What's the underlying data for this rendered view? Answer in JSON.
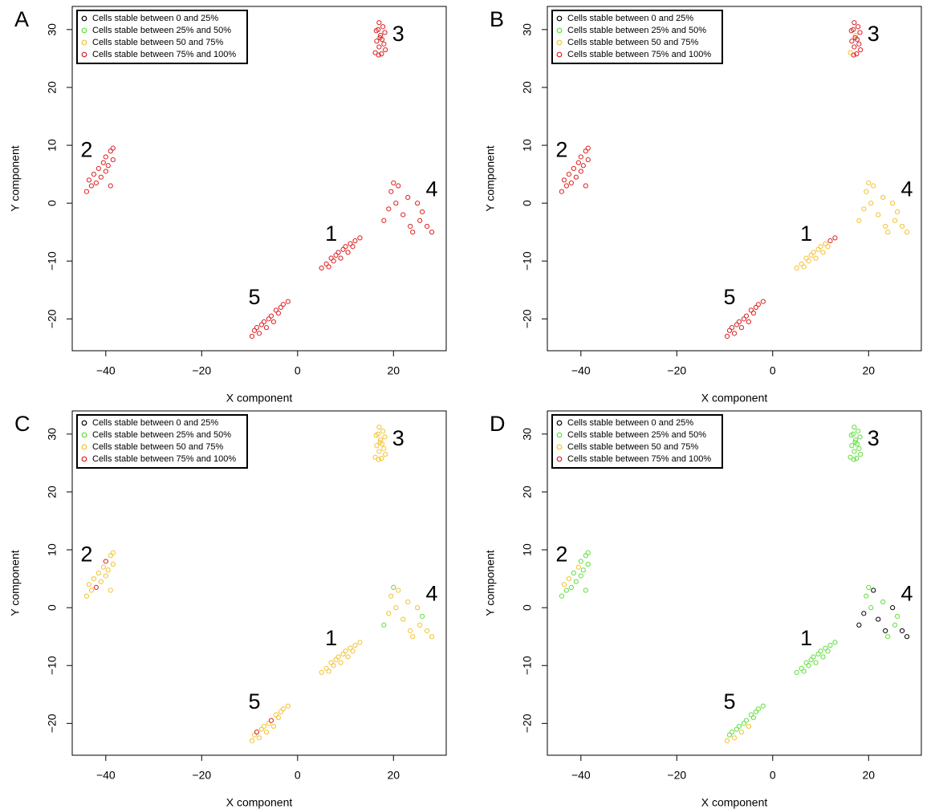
{
  "chart_data": [
    {
      "type": "scatter",
      "panel_label": "A",
      "x_label": "X component",
      "y_label": "Y component",
      "xlim": [
        -47,
        31
      ],
      "ylim": [
        -25.5,
        34
      ],
      "xticks": [
        {
          "value": -40,
          "label": "−40"
        },
        {
          "value": -20,
          "label": "−20"
        },
        0,
        20
      ],
      "yticks": [
        {
          "value": -20,
          "label": "−20"
        },
        {
          "value": -10,
          "label": "−10"
        },
        0,
        10,
        20,
        30
      ],
      "annotations": [
        "1",
        "2",
        "3",
        "4",
        "5"
      ],
      "series": [
        {
          "name": "Cells stable between 0 and 25%",
          "color": "#000000",
          "x": [],
          "y": []
        },
        {
          "name": "Cells stable between 25% and 50%",
          "color": "#5fe03a",
          "x": [],
          "y": []
        },
        {
          "name": "Cells stable between 50 and 75%",
          "color": "#f2c230",
          "x": [],
          "y": []
        },
        {
          "name": "Cells stable between 75% and 100%",
          "color": "#dd2020",
          "x": [
            5,
            6,
            6.5,
            7,
            7.5,
            8,
            8.5,
            9,
            9.5,
            10,
            10.5,
            11,
            11.5,
            12,
            13,
            -44,
            -43.5,
            -43,
            -42.5,
            -42,
            -41.5,
            -41,
            -40.5,
            -40,
            -40,
            -39.5,
            -39,
            -38.5,
            -38.5,
            -39,
            16.2,
            16.5,
            16.8,
            17,
            17,
            17.3,
            17.5,
            17.6,
            17.8,
            18,
            18.2,
            16.4,
            18.3,
            17.2,
            16.9,
            18,
            19,
            19.5,
            20,
            21,
            20.5,
            22,
            23,
            23.5,
            24,
            25,
            25.5,
            26,
            27,
            28,
            -9.5,
            -9,
            -8.5,
            -8,
            -7.5,
            -7,
            -6.5,
            -6,
            -5.5,
            -5,
            -4.5,
            -4,
            -3.5,
            -3,
            -2
          ],
          "y": [
            -11.2,
            -10.5,
            -11,
            -9.5,
            -10,
            -9,
            -8.5,
            -9.5,
            -8,
            -7.5,
            -8.5,
            -7,
            -7.5,
            -6.5,
            -6,
            2,
            4,
            3,
            5,
            3.5,
            6,
            4.5,
            7,
            5.5,
            8,
            6.5,
            9,
            7.5,
            9.5,
            3,
            26,
            28,
            30,
            27,
            31.2,
            29,
            25.8,
            28.3,
            30.5,
            27.5,
            29.5,
            29.8,
            26.5,
            28.6,
            25.6,
            -3,
            -1,
            2,
            3.5,
            3,
            0,
            -2,
            1,
            -4,
            -5,
            0,
            -3,
            -1.5,
            -4,
            -5,
            -23,
            -22,
            -21.5,
            -22.5,
            -21,
            -20.5,
            -21.5,
            -20,
            -19.5,
            -20.5,
            -18.5,
            -19,
            -18,
            -17.5,
            -17
          ]
        }
      ]
    },
    {
      "type": "scatter",
      "panel_label": "B",
      "x_label": "X component",
      "y_label": "Y component",
      "xlim": [
        -47,
        31
      ],
      "ylim": [
        -25.5,
        34
      ],
      "xticks": [
        {
          "value": -40,
          "label": "−40"
        },
        {
          "value": -20,
          "label": "−20"
        },
        0,
        20
      ],
      "yticks": [
        {
          "value": -20,
          "label": "−20"
        },
        {
          "value": -10,
          "label": "−10"
        },
        0,
        10,
        20,
        30
      ],
      "annotations": [
        "1",
        "2",
        "3",
        "4",
        "5"
      ],
      "series": [
        {
          "name": "Cells stable between 0 and 25%",
          "color": "#000000",
          "x": [],
          "y": []
        },
        {
          "name": "Cells stable between 25% and 50%",
          "color": "#5fe03a",
          "x": [],
          "y": []
        },
        {
          "name": "Cells stable between 50 and 75%",
          "color": "#f2c230",
          "x": [
            5,
            6,
            6.5,
            7,
            7.5,
            8,
            8.5,
            9,
            9.5,
            10,
            10.5,
            11,
            11.5,
            18,
            19,
            19.5,
            20,
            21,
            20.5,
            22,
            23,
            23.5,
            24,
            25,
            25.5,
            26,
            27,
            28,
            16.2,
            17.3
          ],
          "y": [
            -11.2,
            -10.5,
            -11,
            -9.5,
            -10,
            -9,
            -8.5,
            -9.5,
            -8,
            -7.5,
            -8.5,
            -7,
            -7.5,
            -3,
            -1,
            2,
            3.5,
            3,
            0,
            -2,
            1,
            -4,
            -5,
            0,
            -3,
            -1.5,
            -4,
            -5,
            26,
            29
          ]
        },
        {
          "name": "Cells stable between 75% and 100%",
          "color": "#dd2020",
          "x": [
            12,
            13,
            -44,
            -43.5,
            -43,
            -42.5,
            -42,
            -41.5,
            -41,
            -40.5,
            -40,
            -40,
            -39.5,
            -39,
            -38.5,
            -38.5,
            -39,
            16.5,
            16.8,
            17,
            17,
            17.5,
            17.6,
            17.8,
            18,
            18.2,
            16.4,
            18.3,
            17.2,
            16.9,
            -9.5,
            -9,
            -8.5,
            -8,
            -7.5,
            -7,
            -6.5,
            -6,
            -5.5,
            -5,
            -4.5,
            -4,
            -3.5,
            -3,
            -2
          ],
          "y": [
            -6.5,
            -6,
            2,
            4,
            3,
            5,
            3.5,
            6,
            4.5,
            7,
            5.5,
            8,
            6.5,
            9,
            7.5,
            9.5,
            3,
            28,
            30,
            27,
            31.2,
            25.8,
            28.3,
            30.5,
            27.5,
            29.5,
            29.8,
            26.5,
            28.6,
            25.6,
            -23,
            -22,
            -21.5,
            -22.5,
            -21,
            -20.5,
            -21.5,
            -20,
            -19.5,
            -20.5,
            -18.5,
            -19,
            -18,
            -17.5,
            -17
          ]
        }
      ]
    },
    {
      "type": "scatter",
      "panel_label": "C",
      "x_label": "X component",
      "y_label": "Y component",
      "xlim": [
        -47,
        31
      ],
      "ylim": [
        -25.5,
        34
      ],
      "xticks": [
        {
          "value": -40,
          "label": "−40"
        },
        {
          "value": -20,
          "label": "−20"
        },
        0,
        20
      ],
      "yticks": [
        {
          "value": -20,
          "label": "−20"
        },
        {
          "value": -10,
          "label": "−10"
        },
        0,
        10,
        20,
        30
      ],
      "annotations": [
        "1",
        "2",
        "3",
        "4",
        "5"
      ],
      "series": [
        {
          "name": "Cells stable between 0 and 25%",
          "color": "#000000",
          "x": [],
          "y": []
        },
        {
          "name": "Cells stable between 25% and 50%",
          "color": "#5fe03a",
          "x": [
            18,
            20,
            26
          ],
          "y": [
            -3,
            3.5,
            -1.5
          ]
        },
        {
          "name": "Cells stable between 50 and 75%",
          "color": "#f2c230",
          "x": [
            5,
            6,
            6.5,
            7,
            7.5,
            8,
            8.5,
            9,
            9.5,
            10,
            10.5,
            11,
            11.5,
            12,
            13,
            -44,
            -43.5,
            -43,
            -42.5,
            -41.5,
            -41,
            -40.5,
            -40,
            -39.5,
            -39,
            -38.5,
            -38.5,
            -39,
            16.2,
            16.5,
            16.8,
            17,
            17,
            17.3,
            17.5,
            17.6,
            17.8,
            18,
            18.2,
            16.4,
            18.3,
            17.2,
            16.9,
            19,
            19.5,
            21,
            20.5,
            22,
            23,
            23.5,
            24,
            25,
            25.5,
            27,
            28,
            -9.5,
            -9,
            -8,
            -7.5,
            -7,
            -6.5,
            -6,
            -5,
            -4.5,
            -4,
            -3.5,
            -3,
            -2
          ],
          "y": [
            -11.2,
            -10.5,
            -11,
            -9.5,
            -10,
            -9,
            -8.5,
            -9.5,
            -8,
            -7.5,
            -8.5,
            -7,
            -7.5,
            -6.5,
            -6,
            2,
            4,
            3,
            5,
            6,
            4.5,
            7,
            5.5,
            6.5,
            9,
            7.5,
            9.5,
            3,
            26,
            28,
            30,
            27,
            31.2,
            29,
            25.8,
            28.3,
            30.5,
            27.5,
            29.5,
            29.8,
            26.5,
            28.6,
            25.6,
            -1,
            2,
            3,
            0,
            -2,
            1,
            -4,
            -5,
            0,
            -3,
            -4,
            -5,
            -23,
            -22,
            -22.5,
            -21,
            -20.5,
            -21.5,
            -20,
            -20.5,
            -18.5,
            -19,
            -18,
            -17.5,
            -17
          ]
        },
        {
          "name": "Cells stable between 75% and 100%",
          "color": "#dd2020",
          "x": [
            -42,
            -40,
            -8.5,
            -5.5
          ],
          "y": [
            3.5,
            8,
            -21.5,
            -19.5
          ]
        }
      ]
    },
    {
      "type": "scatter",
      "panel_label": "D",
      "x_label": "X component",
      "y_label": "Y component",
      "xlim": [
        -47,
        31
      ],
      "ylim": [
        -25.5,
        34
      ],
      "xticks": [
        {
          "value": -40,
          "label": "−40"
        },
        {
          "value": -20,
          "label": "−20"
        },
        0,
        20
      ],
      "yticks": [
        {
          "value": -20,
          "label": "−20"
        },
        {
          "value": -10,
          "label": "−10"
        },
        0,
        10,
        20,
        30
      ],
      "annotations": [
        "1",
        "2",
        "3",
        "4",
        "5"
      ],
      "series": [
        {
          "name": "Cells stable between 0 and 25%",
          "color": "#000000",
          "x": [
            18,
            19,
            21,
            22,
            23.5,
            25,
            27,
            28
          ],
          "y": [
            -3,
            -1,
            3,
            -2,
            -4,
            0,
            -4,
            -5
          ]
        },
        {
          "name": "Cells stable between 25% and 50%",
          "color": "#5fe03a",
          "x": [
            5,
            6,
            6.5,
            7,
            7.5,
            8,
            8.5,
            9,
            9.5,
            10,
            10.5,
            11,
            11.5,
            12,
            13,
            -44,
            -43,
            -42,
            -41.5,
            -41,
            -40,
            -40,
            -39.5,
            -39,
            -38.5,
            -38.5,
            -39,
            16.2,
            16.5,
            16.8,
            17,
            17,
            17.3,
            17.5,
            17.6,
            17.8,
            18,
            18.2,
            16.4,
            18.3,
            17.2,
            16.9,
            19.5,
            20,
            20.5,
            23,
            24,
            25.5,
            26,
            -9,
            -8.5,
            -7.5,
            -7,
            -6,
            -5.5,
            -4.5,
            -4,
            -3.5,
            -3,
            -2
          ],
          "y": [
            -11.2,
            -10.5,
            -11,
            -9.5,
            -10,
            -9,
            -8.5,
            -9.5,
            -8,
            -7.5,
            -8.5,
            -7,
            -7.5,
            -6.5,
            -6,
            2,
            3,
            3.5,
            6,
            4.5,
            5.5,
            8,
            6.5,
            9,
            7.5,
            9.5,
            3,
            26,
            28,
            30,
            27,
            31.2,
            29,
            25.8,
            28.3,
            30.5,
            27.5,
            29.5,
            29.8,
            26.5,
            28.6,
            25.6,
            2,
            3.5,
            0,
            1,
            -5,
            -3,
            -1.5,
            -22,
            -21.5,
            -21,
            -20.5,
            -20,
            -19.5,
            -18.5,
            -19,
            -18,
            -17.5,
            -17
          ]
        },
        {
          "name": "Cells stable between 50 and 75%",
          "color": "#f2c230",
          "x": [
            -43.5,
            -42.5,
            -40.5,
            -9.5,
            -8,
            -6.5,
            -5
          ],
          "y": [
            4,
            5,
            7,
            -23,
            -22.5,
            -21.5,
            -20.5
          ]
        },
        {
          "name": "Cells stable between 75% and 100%",
          "color": "#dd2020",
          "x": [],
          "y": []
        }
      ]
    }
  ]
}
